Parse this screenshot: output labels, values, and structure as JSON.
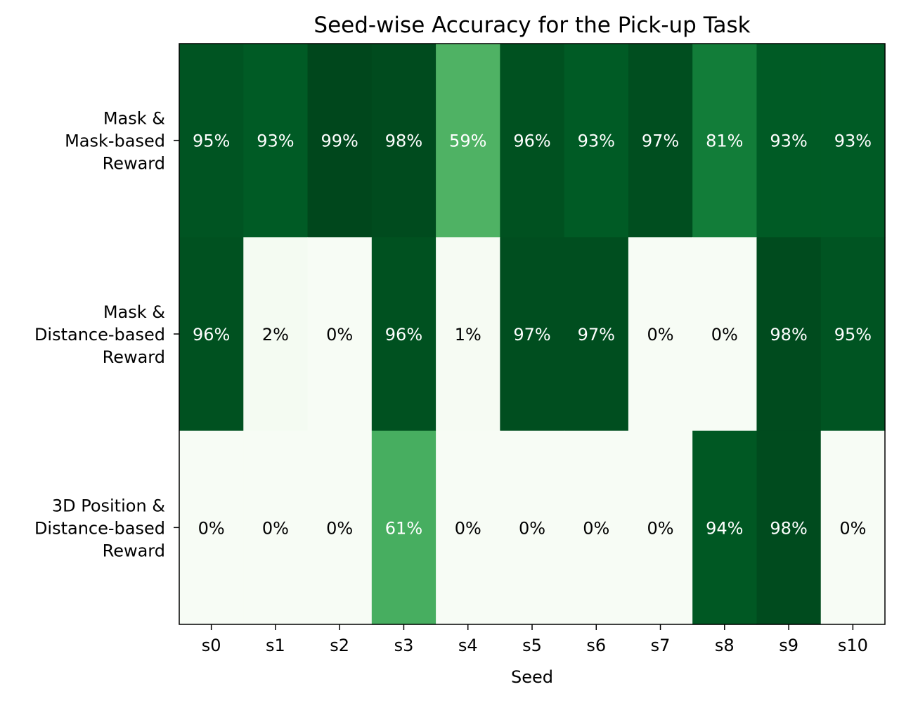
{
  "chart_data": {
    "type": "heatmap",
    "title": "Seed-wise Accuracy for the Pick-up Task",
    "xlabel": "Seed",
    "ylabel": "",
    "x_categories": [
      "s0",
      "s1",
      "s2",
      "s3",
      "s4",
      "s5",
      "s6",
      "s7",
      "s8",
      "s9",
      "s10"
    ],
    "y_categories": [
      [
        "Mask &",
        "Mask-based",
        "Reward"
      ],
      [
        "Mask &",
        "Distance-based",
        "Reward"
      ],
      [
        "3D Position &",
        "Distance-based",
        "Reward"
      ]
    ],
    "values": [
      [
        95,
        93,
        99,
        98,
        59,
        96,
        93,
        97,
        81,
        93,
        93
      ],
      [
        96,
        2,
        0,
        96,
        1,
        97,
        97,
        0,
        0,
        98,
        95
      ],
      [
        0,
        0,
        0,
        61,
        0,
        0,
        0,
        0,
        94,
        98,
        0
      ]
    ],
    "value_suffix": "%",
    "value_range": [
      0,
      100
    ],
    "colormap": "Greens",
    "colorbar": false,
    "grid": false
  }
}
